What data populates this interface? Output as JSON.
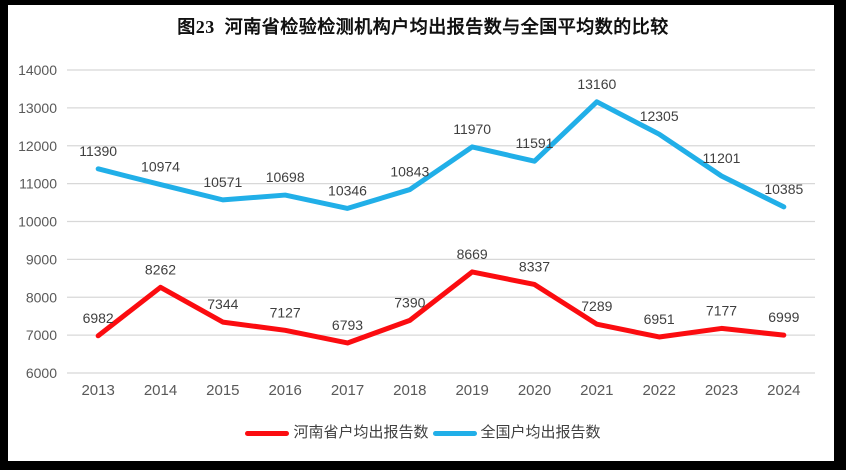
{
  "title": "图23  河南省检验检测机构户均出报告数与全国平均数的比较",
  "legend": [
    {
      "label": "河南省户均出报告数",
      "color": "#FB0C10"
    },
    {
      "label": "全国户均出报告数",
      "color": "#21AFE8"
    }
  ],
  "axes": {
    "y_tick_labels": [
      "6000",
      "7000",
      "8000",
      "9000",
      "10000",
      "11000",
      "12000",
      "13000",
      "14000"
    ],
    "x_tick_labels": [
      "2013",
      "2014",
      "2015",
      "2016",
      "2017",
      "2018",
      "2019",
      "2020",
      "2021",
      "2022",
      "2023",
      "2024"
    ]
  },
  "colors": {
    "frame": "#000000",
    "background": "#ffffff",
    "gridline": "#d8d8d8",
    "axis_text": "#595959",
    "data_label_text": "#3f3f3f",
    "title_text": "#111111",
    "henan_red": "#FB0C10",
    "national_blue": "#21AFE8"
  },
  "chart_data": {
    "type": "line",
    "title": "图23  河南省检验检测机构户均出报告数与全国平均数的比较",
    "categories": [
      "2013",
      "2014",
      "2015",
      "2016",
      "2017",
      "2018",
      "2019",
      "2020",
      "2021",
      "2022",
      "2023",
      "2024"
    ],
    "series": [
      {
        "name": "河南省户均出报告数",
        "color": "#FB0C10",
        "values": [
          6982,
          8262,
          7344,
          7127,
          6793,
          7390,
          8669,
          8337,
          7289,
          6951,
          7177,
          6999
        ]
      },
      {
        "name": "全国户均出报告数",
        "color": "#21AFE8",
        "values": [
          11390,
          10974,
          10571,
          10698,
          10346,
          10843,
          11970,
          11591,
          13160,
          12305,
          11201,
          10385
        ]
      }
    ],
    "xlabel": "",
    "ylabel": "",
    "ylim": [
      6000,
      14000
    ],
    "yticks": [
      6000,
      7000,
      8000,
      9000,
      10000,
      11000,
      12000,
      13000,
      14000
    ],
    "grid": true,
    "data_labels": true,
    "legend_position": "bottom"
  }
}
